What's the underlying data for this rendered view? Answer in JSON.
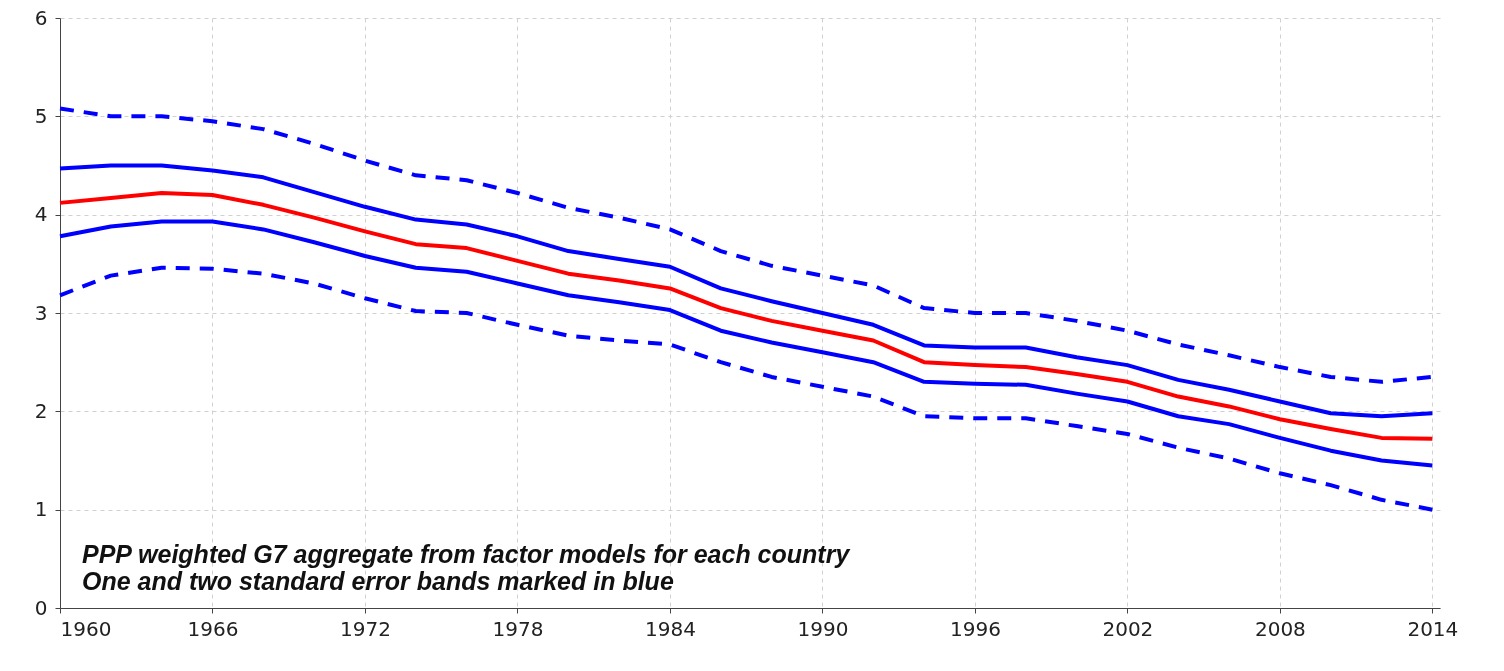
{
  "chart_data": {
    "type": "line",
    "x": [
      1960,
      1962,
      1964,
      1966,
      1968,
      1970,
      1972,
      1974,
      1976,
      1978,
      1980,
      1982,
      1984,
      1986,
      1988,
      1990,
      1992,
      1994,
      1996,
      1998,
      2000,
      2002,
      2004,
      2006,
      2008,
      2010,
      2012,
      2014
    ],
    "series": [
      {
        "color": "#0000ff",
        "line_style": "dashed",
        "values": [
          5.08,
          5.0,
          5.0,
          4.95,
          4.87,
          4.72,
          4.55,
          4.4,
          4.35,
          4.22,
          4.07,
          3.97,
          3.85,
          3.63,
          3.48,
          3.38,
          3.28,
          3.05,
          3.0,
          3.0,
          2.92,
          2.82,
          2.68,
          2.57,
          2.45,
          2.35,
          2.3,
          2.35
        ]
      },
      {
        "color": "#0000ff",
        "line_style": "solid",
        "values": [
          4.47,
          4.5,
          4.5,
          4.45,
          4.38,
          4.23,
          4.08,
          3.95,
          3.9,
          3.78,
          3.63,
          3.55,
          3.47,
          3.25,
          3.12,
          3.0,
          2.88,
          2.67,
          2.65,
          2.65,
          2.55,
          2.47,
          2.32,
          2.22,
          2.1,
          1.98,
          1.95,
          1.98
        ]
      },
      {
        "color": "#ff0000",
        "line_style": "solid",
        "values": [
          4.12,
          4.17,
          4.22,
          4.2,
          4.1,
          3.97,
          3.83,
          3.7,
          3.66,
          3.53,
          3.4,
          3.33,
          3.25,
          3.05,
          2.92,
          2.82,
          2.72,
          2.5,
          2.47,
          2.45,
          2.38,
          2.3,
          2.15,
          2.05,
          1.92,
          1.82,
          1.73,
          1.72
        ]
      },
      {
        "color": "#0000ff",
        "line_style": "solid",
        "values": [
          3.78,
          3.88,
          3.93,
          3.93,
          3.85,
          3.72,
          3.58,
          3.46,
          3.42,
          3.3,
          3.18,
          3.11,
          3.03,
          2.82,
          2.7,
          2.6,
          2.5,
          2.3,
          2.28,
          2.27,
          2.18,
          2.1,
          1.95,
          1.87,
          1.73,
          1.6,
          1.5,
          1.45
        ]
      },
      {
        "color": "#0000ff",
        "line_style": "dashed",
        "values": [
          3.18,
          3.38,
          3.46,
          3.45,
          3.4,
          3.3,
          3.15,
          3.02,
          3.0,
          2.88,
          2.77,
          2.72,
          2.68,
          2.5,
          2.35,
          2.25,
          2.15,
          1.95,
          1.93,
          1.93,
          1.85,
          1.77,
          1.63,
          1.52,
          1.37,
          1.25,
          1.1,
          1.0
        ]
      }
    ],
    "xlim": [
      1960,
      2014.3
    ],
    "xticks": [
      1960,
      1966,
      1972,
      1978,
      1984,
      1990,
      1996,
      2002,
      2008,
      2014
    ],
    "ylim": [
      0,
      6
    ],
    "yticks": [
      0,
      1,
      2,
      3,
      4,
      5,
      6
    ],
    "grid": true,
    "annotations": [
      "PPP weighted G7 aggregate from factor models for each country",
      "One and two standard error bands marked in blue"
    ]
  }
}
